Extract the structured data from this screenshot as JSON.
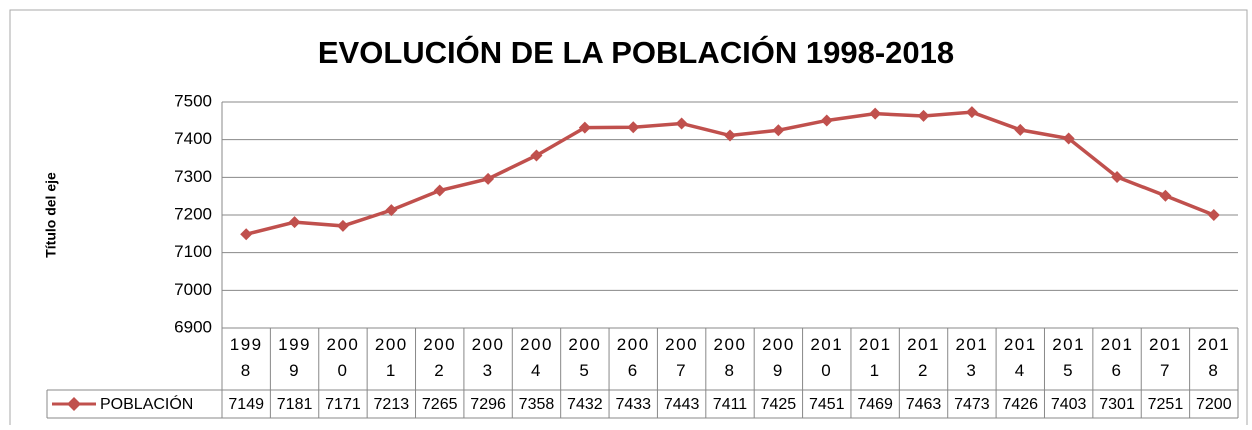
{
  "chart_data": {
    "type": "line",
    "title": "EVOLUCIÓN DE LA POBLACIÓN 1998-2018",
    "y_label": "Título del eje",
    "categories": [
      "1998",
      "1999",
      "2000",
      "2001",
      "2002",
      "2003",
      "2004",
      "2005",
      "2006",
      "2007",
      "2008",
      "2009",
      "2010",
      "2011",
      "2012",
      "2013",
      "2014",
      "2015",
      "2016",
      "2017",
      "2018"
    ],
    "series": [
      {
        "name": "POBLACIÓN",
        "color": "#c0504d",
        "values": [
          7149,
          7181,
          7171,
          7213,
          7265,
          7296,
          7358,
          7432,
          7433,
          7443,
          7411,
          7425,
          7451,
          7469,
          7463,
          7473,
          7426,
          7403,
          7301,
          7251,
          7200
        ]
      }
    ],
    "ylim": [
      6900,
      7500
    ],
    "yticks": [
      6900,
      7000,
      7100,
      7200,
      7300,
      7400,
      7500
    ],
    "grid": true
  }
}
